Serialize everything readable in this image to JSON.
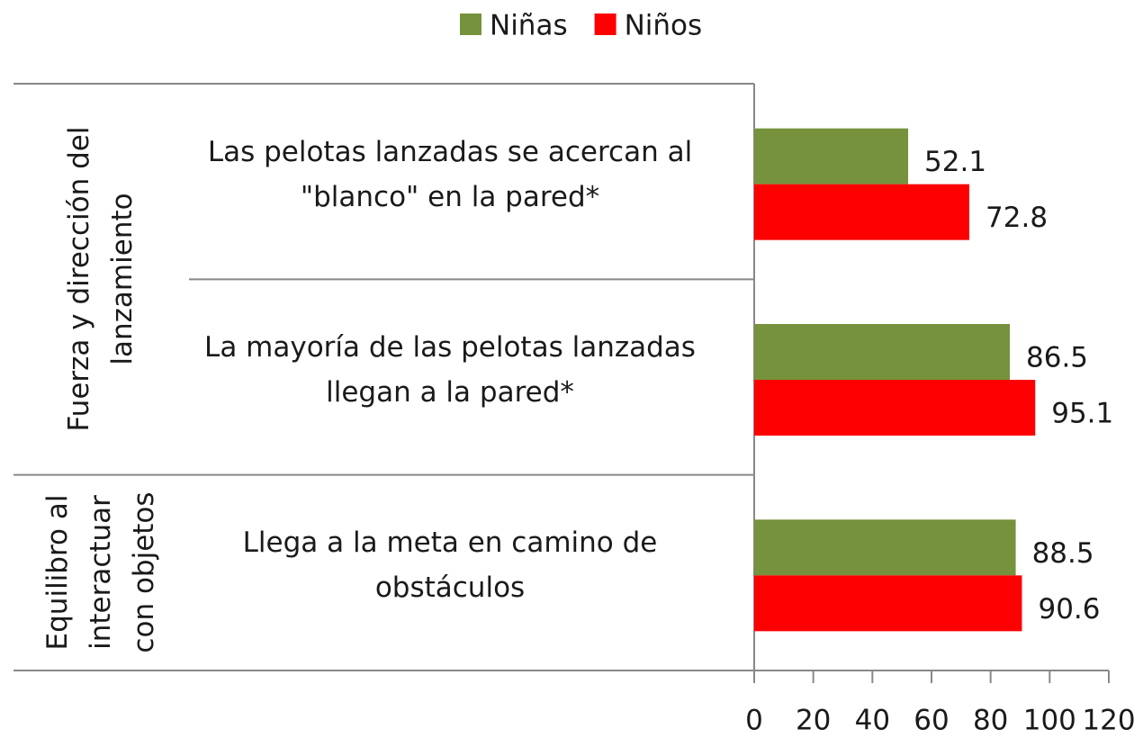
{
  "chart_data": {
    "type": "bar",
    "orientation": "horizontal",
    "groups": [
      {
        "name": "Fuerza y dirección del lanzamiento",
        "categories": [
          "Las pelotas lanzadas se acercan al \"blanco\" en la pared*",
          "La mayoría de las pelotas lanzadas llegan a la pared*"
        ]
      },
      {
        "name": "Equilibro al interactuar con objetos",
        "categories": [
          "Llega a la meta en camino de obstáculos"
        ]
      }
    ],
    "series": [
      {
        "name": "Niñas",
        "color": "#76923c",
        "values": [
          52.1,
          86.5,
          88.5
        ]
      },
      {
        "name": "Niños",
        "color": "#ff0000",
        "values": [
          72.8,
          95.1,
          90.6
        ]
      }
    ],
    "xlim": [
      0,
      120
    ],
    "xticks": [
      0,
      20,
      40,
      60,
      80,
      100,
      120
    ],
    "grid": false,
    "legend": "top"
  }
}
